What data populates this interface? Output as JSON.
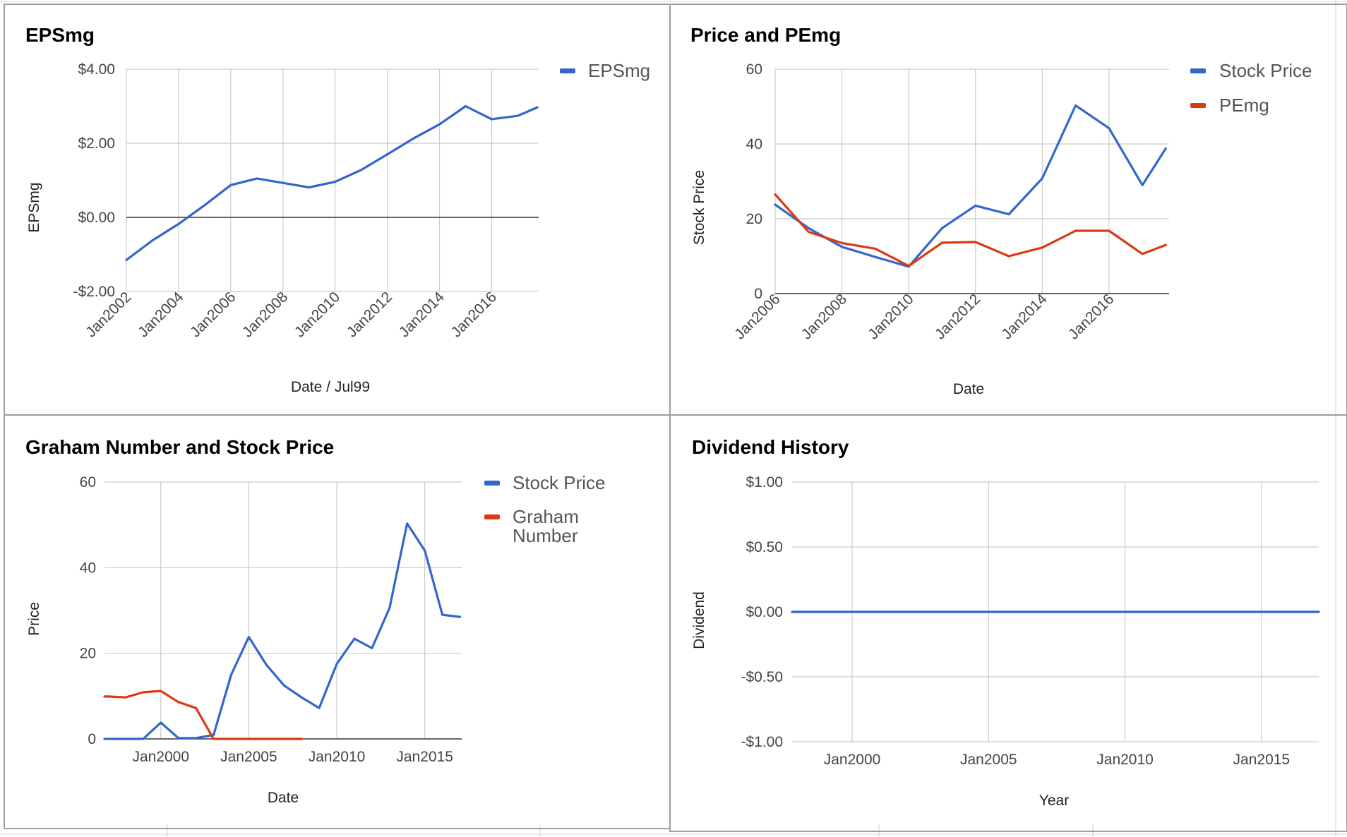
{
  "colors": {
    "blue": "#3366cc",
    "red": "#dc3912"
  },
  "chart_data": [
    {
      "type": "line",
      "title": "EPSmg",
      "xlabel": "Date / Jul99",
      "ylabel": "EPSmg",
      "x_tick_labels": [
        "Jan2002",
        "Jan2004",
        "Jan2006",
        "Jan2008",
        "Jan2010",
        "Jan2012",
        "Jan2014",
        "Jan2016"
      ],
      "y_tick_labels": [
        "$4.00",
        "$2.00",
        "$0.00",
        "-$2.00"
      ],
      "xlim": [
        2002.0,
        2017.8
      ],
      "ylim": [
        -2,
        4
      ],
      "x_ticks": [
        2002,
        2004,
        2006,
        2008,
        2010,
        2012,
        2014,
        2016
      ],
      "y_ticks": [
        4,
        2,
        0,
        -2
      ],
      "legend": "right",
      "series": [
        {
          "name": "EPSmg",
          "color": "#3366cc",
          "x": [
            2002.0,
            2003.0,
            2004.0,
            2005.0,
            2006.0,
            2007.0,
            2008.0,
            2009.0,
            2010.0,
            2011.0,
            2012.0,
            2013.0,
            2014.0,
            2015.0,
            2016.0,
            2017.0,
            2017.75
          ],
          "y": [
            -1.15,
            -0.62,
            -0.18,
            0.33,
            0.87,
            1.05,
            0.93,
            0.81,
            0.96,
            1.28,
            1.7,
            2.13,
            2.51,
            3.0,
            2.65,
            2.74,
            2.97
          ]
        }
      ]
    },
    {
      "type": "line",
      "title": "Price and PEmg",
      "xlabel": "Date",
      "ylabel": "Stock Price",
      "x_tick_labels": [
        "Jan2006",
        "Jan2008",
        "Jan2010",
        "Jan2012",
        "Jan2014",
        "Jan2016"
      ],
      "y_tick_labels": [
        "60",
        "40",
        "20",
        "0"
      ],
      "xlim": [
        2006.0,
        2017.8
      ],
      "ylim": [
        0,
        60
      ],
      "x_ticks": [
        2006,
        2008,
        2010,
        2012,
        2014,
        2016
      ],
      "y_ticks": [
        60,
        40,
        20,
        0
      ],
      "legend": "right",
      "series": [
        {
          "name": "Stock Price",
          "color": "#3366cc",
          "x": [
            2006.0,
            2007.0,
            2008.0,
            2009.0,
            2010.0,
            2011.0,
            2012.0,
            2013.0,
            2014.0,
            2015.0,
            2016.0,
            2017.0,
            2017.7
          ],
          "y": [
            23.8,
            17.5,
            12.5,
            9.8,
            7.2,
            17.5,
            23.5,
            21.2,
            30.8,
            50.3,
            44.2,
            29.0,
            38.8
          ]
        },
        {
          "name": "PEmg",
          "color": "#dc3912",
          "x": [
            2006.0,
            2007.0,
            2008.0,
            2009.0,
            2010.0,
            2011.0,
            2012.0,
            2013.0,
            2014.0,
            2015.0,
            2016.0,
            2017.0,
            2017.7
          ],
          "y": [
            26.5,
            16.5,
            13.5,
            12.0,
            7.4,
            13.6,
            13.8,
            10.0,
            12.3,
            16.8,
            16.8,
            10.6,
            13.0
          ]
        }
      ]
    },
    {
      "type": "line",
      "title": "Graham Number and Stock Price",
      "xlabel": "Date",
      "ylabel": "Price",
      "x_tick_labels": [
        "Jan2000",
        "Jan2005",
        "Jan2010",
        "Jan2015"
      ],
      "y_tick_labels": [
        "60",
        "40",
        "20",
        "0"
      ],
      "xlim": [
        1996.8,
        2017.1
      ],
      "ylim": [
        0,
        60
      ],
      "x_ticks": [
        2000,
        2005,
        2010,
        2015
      ],
      "y_ticks": [
        60,
        40,
        20,
        0
      ],
      "legend": "right",
      "series": [
        {
          "name": "Stock Price",
          "color": "#3366cc",
          "x": [
            1996.8,
            1997.0,
            1998.0,
            1999.0,
            2000.0,
            2001.0,
            2002.0,
            2003.0,
            2004.0,
            2005.0,
            2006.0,
            2007.0,
            2008.0,
            2009.0,
            2010.0,
            2011.0,
            2012.0,
            2013.0,
            2014.0,
            2015.0,
            2016.0,
            2017.0
          ],
          "y": [
            0.0,
            0.0,
            0.0,
            0.0,
            3.8,
            0.2,
            0.2,
            0.9,
            15.0,
            23.8,
            17.3,
            12.5,
            9.7,
            7.2,
            17.5,
            23.4,
            21.2,
            30.6,
            50.3,
            44.0,
            29.0,
            28.5
          ]
        },
        {
          "name": "Graham Number",
          "color": "#dc3912",
          "x": [
            1996.8,
            1997.0,
            1998.0,
            1999.0,
            2000.0,
            2001.0,
            2002.0,
            2003.0,
            2004.0,
            2005.0,
            2006.0,
            2007.0,
            2008.0
          ],
          "y": [
            9.9,
            9.9,
            9.7,
            10.9,
            11.2,
            8.6,
            7.2,
            0.0,
            0.0,
            0.0,
            0.0,
            0.0,
            0.0
          ]
        }
      ]
    },
    {
      "type": "line",
      "title": "Dividend History",
      "xlabel": "Year",
      "ylabel": "Dividend",
      "x_tick_labels": [
        "Jan2000",
        "Jan2005",
        "Jan2010",
        "Jan2015"
      ],
      "y_tick_labels": [
        "$1.00",
        "$0.50",
        "$0.00",
        "-$0.50",
        "-$1.00"
      ],
      "xlim": [
        1997.8,
        2017.1
      ],
      "ylim": [
        -1,
        1
      ],
      "x_ticks": [
        2000,
        2005,
        2010,
        2015
      ],
      "y_ticks": [
        1,
        0.5,
        0,
        -0.5,
        -1
      ],
      "legend": "none",
      "series": [
        {
          "color": "#3366cc",
          "x": [
            1997.8,
            2017.1
          ],
          "y": [
            0,
            0
          ]
        }
      ]
    }
  ]
}
